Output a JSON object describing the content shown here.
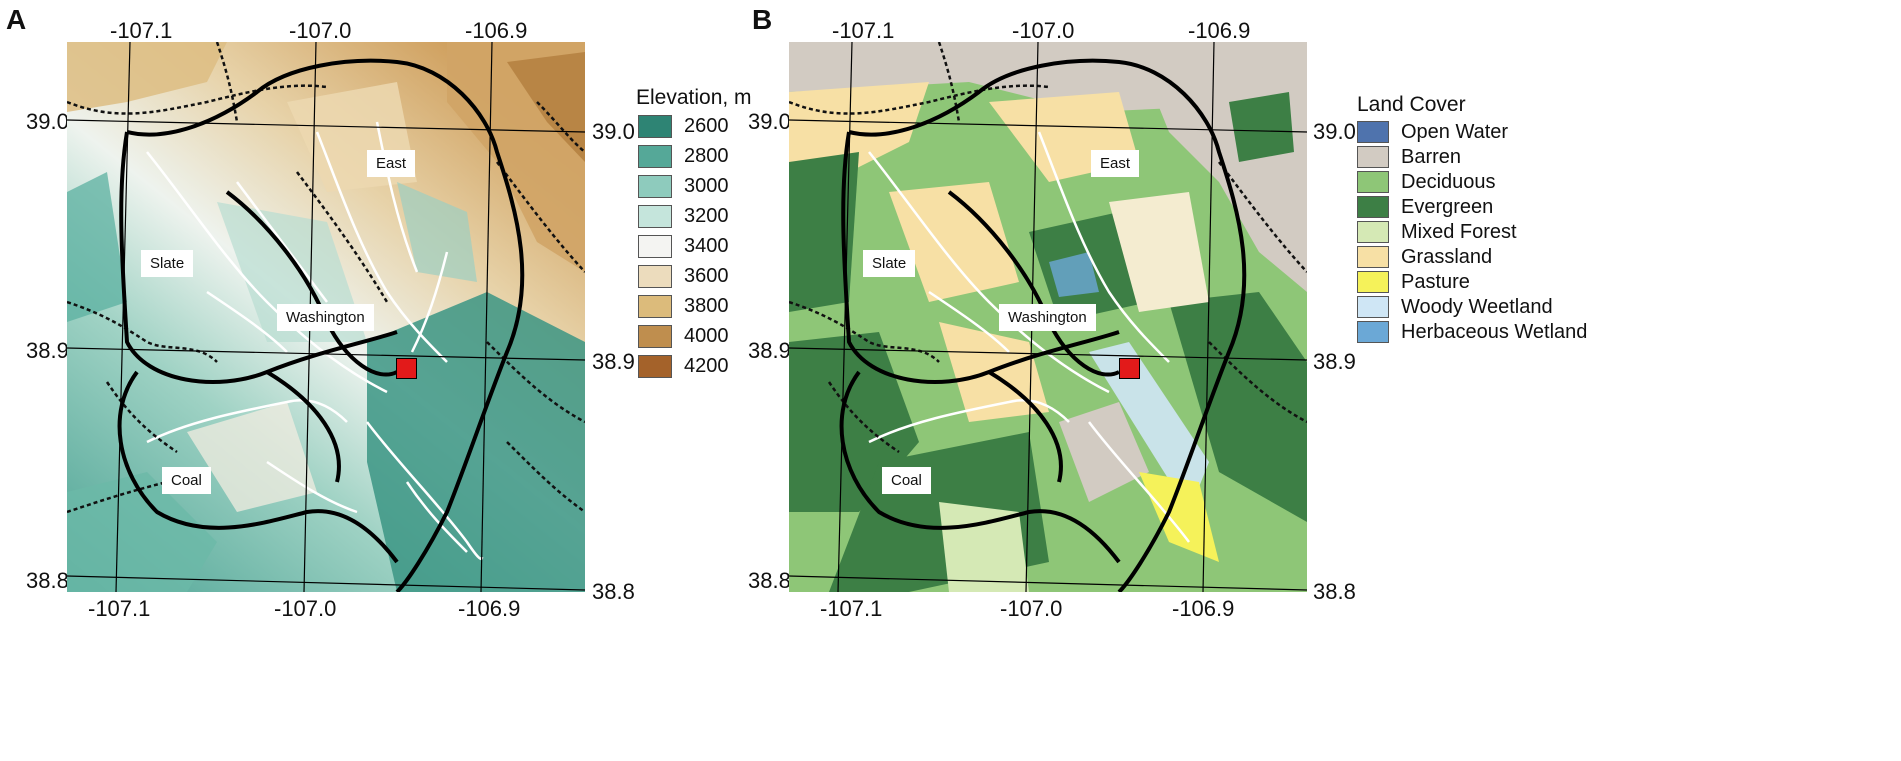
{
  "panels": {
    "a": {
      "letter": "A",
      "top_ticks": [
        "-107.1",
        "-107.0",
        "-106.9"
      ],
      "bottom_ticks": [
        "-107.1",
        "-107.0",
        "-106.9"
      ],
      "left_ticks": [
        "39.0",
        "38.9",
        "38.8"
      ],
      "right_ticks": [
        "39.0",
        "38.9",
        "38.8"
      ],
      "labels": {
        "east": "East",
        "slate": "Slate",
        "washington": "Washington",
        "coal": "Coal"
      },
      "legend": {
        "title": "Elevation, m",
        "items": [
          {
            "label": "2600",
            "color": "#2e8474"
          },
          {
            "label": "2800",
            "color": "#55a898"
          },
          {
            "label": "3000",
            "color": "#8ecbbd"
          },
          {
            "label": "3200",
            "color": "#c5e5dc"
          },
          {
            "label": "3400",
            "color": "#f4f4f2"
          },
          {
            "label": "3600",
            "color": "#ecdcbd"
          },
          {
            "label": "3800",
            "color": "#dcbb7b"
          },
          {
            "label": "4000",
            "color": "#bf8e4e"
          },
          {
            "label": "4200",
            "color": "#a4622a"
          }
        ]
      }
    },
    "b": {
      "letter": "B",
      "top_ticks": [
        "-107.1",
        "-107.0",
        "-106.9"
      ],
      "bottom_ticks": [
        "-107.1",
        "-107.0",
        "-106.9"
      ],
      "left_ticks": [
        "39.0",
        "38.9",
        "38.8"
      ],
      "right_ticks": [
        "39.0",
        "38.9",
        "38.8"
      ],
      "labels": {
        "east": "East",
        "slate": "Slate",
        "washington": "Washington",
        "coal": "Coal"
      },
      "legend": {
        "title": "Land Cover",
        "items": [
          {
            "label": "Open Water",
            "color": "#4f73ad"
          },
          {
            "label": "Barren",
            "color": "#d2cbc2"
          },
          {
            "label": "Deciduous",
            "color": "#8ec677"
          },
          {
            "label": "Evergreen",
            "color": "#3d7f45"
          },
          {
            "label": "Mixed Forest",
            "color": "#d5e9b5"
          },
          {
            "label": "Grassland",
            "color": "#f7e0a5"
          },
          {
            "label": "Pasture",
            "color": "#f5f25a"
          },
          {
            "label": "Woody Weetland",
            "color": "#cfe6f5"
          },
          {
            "label": "Herbaceous Wetland",
            "color": "#6ba8d6"
          }
        ]
      }
    }
  }
}
